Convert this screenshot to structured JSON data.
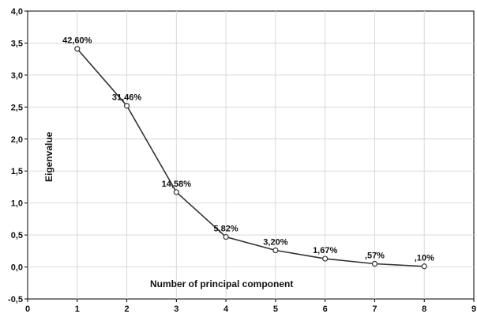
{
  "chart_data": {
    "type": "line",
    "title": "",
    "xlabel": "Number of principal component",
    "ylabel": "Eigenvalue",
    "xlim": [
      0,
      9
    ],
    "ylim": [
      -0.5,
      4.0
    ],
    "x_ticks": [
      "0",
      "1",
      "2",
      "3",
      "4",
      "5",
      "6",
      "7",
      "8",
      "9"
    ],
    "y_ticks": [
      "4,0",
      "3,5",
      "3,0",
      "2,5",
      "2,0",
      "1,5",
      "1,0",
      "0,5",
      "0,0",
      "-0,5"
    ],
    "grid": true,
    "legend": "none",
    "line_color": "#333333",
    "series": [
      {
        "x": [
          1,
          2,
          3,
          4,
          5,
          6,
          7,
          8
        ],
        "values": [
          3.41,
          2.52,
          1.17,
          0.47,
          0.26,
          0.13,
          0.05,
          0.01
        ],
        "labels": [
          "42,60%",
          "31,46%",
          "14,58%",
          "5,82%",
          "3,20%",
          "1,67%",
          ",57%",
          ",10%"
        ]
      }
    ]
  }
}
